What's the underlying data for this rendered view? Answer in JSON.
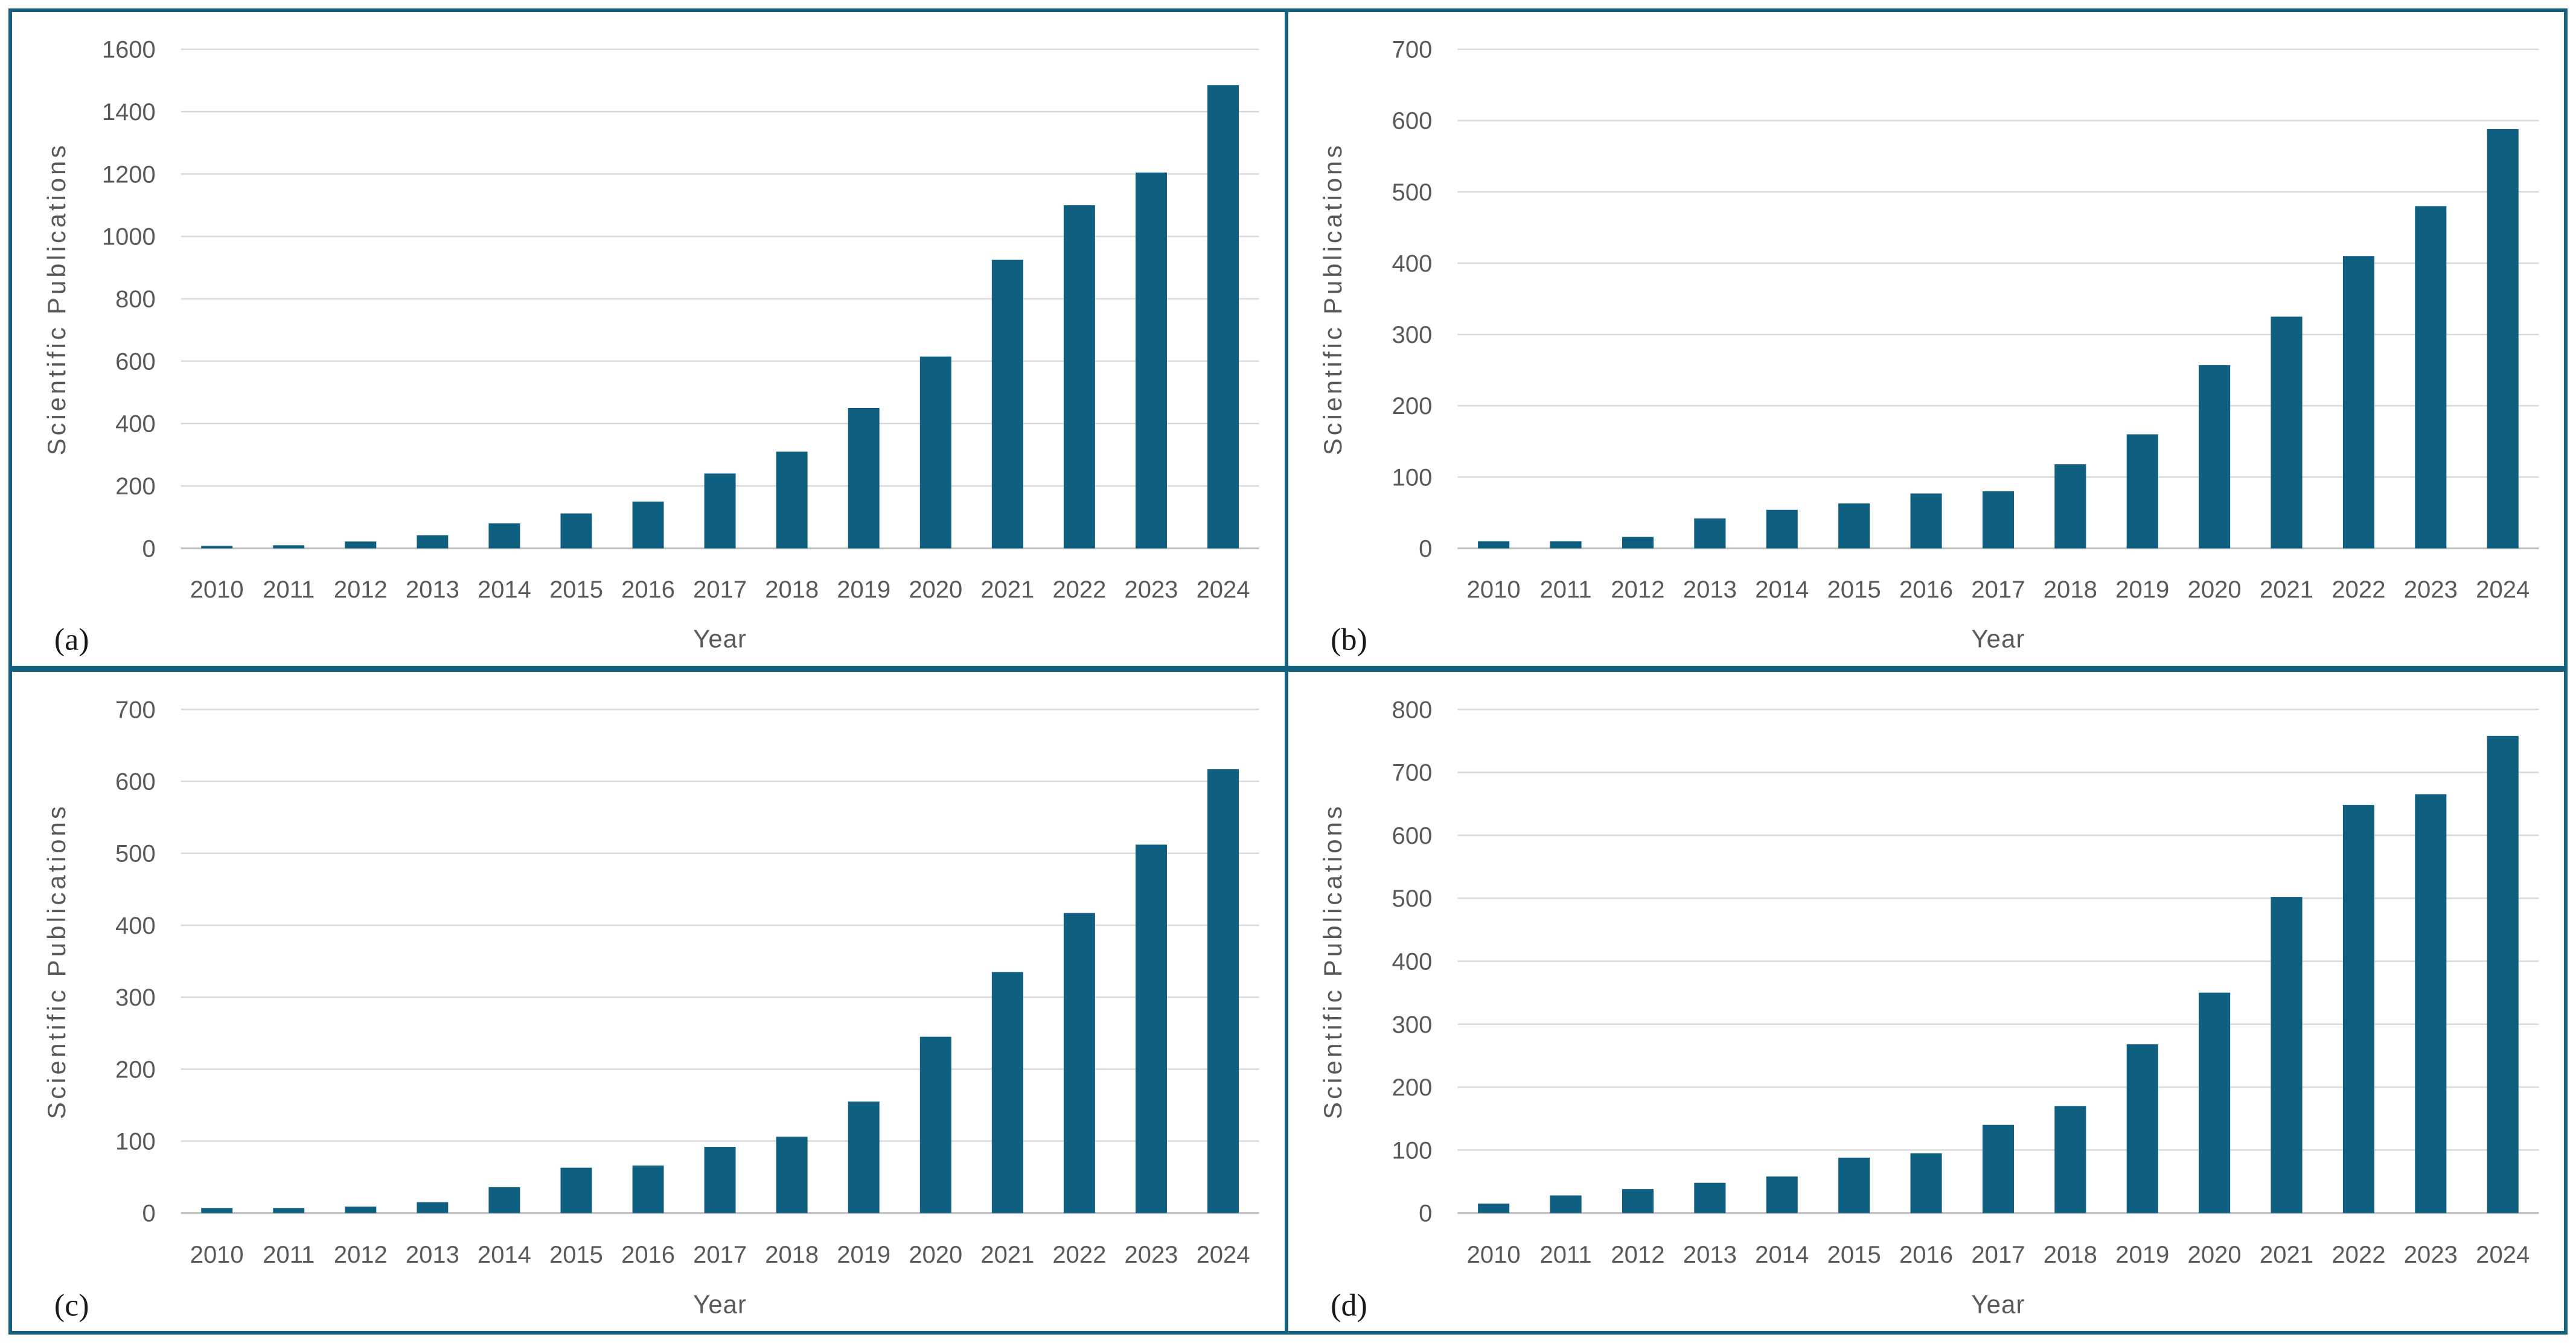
{
  "figure": {
    "kind": "four-panel bar chart figure",
    "shared_x_axis_label": "Year",
    "shared_y_axis_label": "Scientific Publications"
  },
  "colors": {
    "bar": "#0E5F80",
    "frame": "#15607E",
    "gridline": "#D9D9D9",
    "axis_line": "#BFBFBF",
    "tick_text": "#595959",
    "axis_title_text": "#595959",
    "panel_letter_text": "#1A1A1A",
    "background": "#FFFFFF"
  },
  "chart_data": [
    {
      "type": "bar",
      "panel_label": "(a)",
      "title": "",
      "xlabel": "Year",
      "ylabel": "Scientific Publications",
      "categories": [
        "2010",
        "2011",
        "2012",
        "2013",
        "2014",
        "2015",
        "2016",
        "2017",
        "2018",
        "2019",
        "2020",
        "2021",
        "2022",
        "2023",
        "2024"
      ],
      "values": [
        8,
        10,
        22,
        42,
        80,
        112,
        150,
        240,
        310,
        450,
        615,
        925,
        1100,
        1205,
        1485
      ],
      "ylim": [
        0,
        1600
      ],
      "ytick_step": 200,
      "grid": true,
      "legend_position": "none"
    },
    {
      "type": "bar",
      "panel_label": "(b)",
      "title": "",
      "xlabel": "Year",
      "ylabel": "Scientific Publications",
      "categories": [
        "2010",
        "2011",
        "2012",
        "2013",
        "2014",
        "2015",
        "2016",
        "2017",
        "2018",
        "2019",
        "2020",
        "2021",
        "2022",
        "2023",
        "2024"
      ],
      "values": [
        10,
        10,
        16,
        42,
        54,
        63,
        77,
        80,
        118,
        160,
        257,
        325,
        410,
        480,
        588
      ],
      "ylim": [
        0,
        700
      ],
      "ytick_step": 100,
      "grid": true,
      "legend_position": "none"
    },
    {
      "type": "bar",
      "panel_label": "(c)",
      "title": "",
      "xlabel": "Year",
      "ylabel": "Scientific Publications",
      "categories": [
        "2010",
        "2011",
        "2012",
        "2013",
        "2014",
        "2015",
        "2016",
        "2017",
        "2018",
        "2019",
        "2020",
        "2021",
        "2022",
        "2023",
        "2024"
      ],
      "values": [
        7,
        7,
        9,
        15,
        36,
        63,
        66,
        92,
        106,
        155,
        245,
        335,
        417,
        512,
        617
      ],
      "ylim": [
        0,
        700
      ],
      "ytick_step": 100,
      "grid": true,
      "legend_position": "none"
    },
    {
      "type": "bar",
      "panel_label": "(d)",
      "title": "",
      "xlabel": "Year",
      "ylabel": "Scientific Publications",
      "categories": [
        "2010",
        "2011",
        "2012",
        "2013",
        "2014",
        "2015",
        "2016",
        "2017",
        "2018",
        "2019",
        "2020",
        "2021",
        "2022",
        "2023",
        "2024"
      ],
      "values": [
        15,
        28,
        38,
        48,
        58,
        88,
        95,
        140,
        170,
        268,
        350,
        502,
        648,
        665,
        758
      ],
      "ylim": [
        0,
        800
      ],
      "ytick_step": 100,
      "grid": true,
      "legend_position": "none"
    }
  ]
}
